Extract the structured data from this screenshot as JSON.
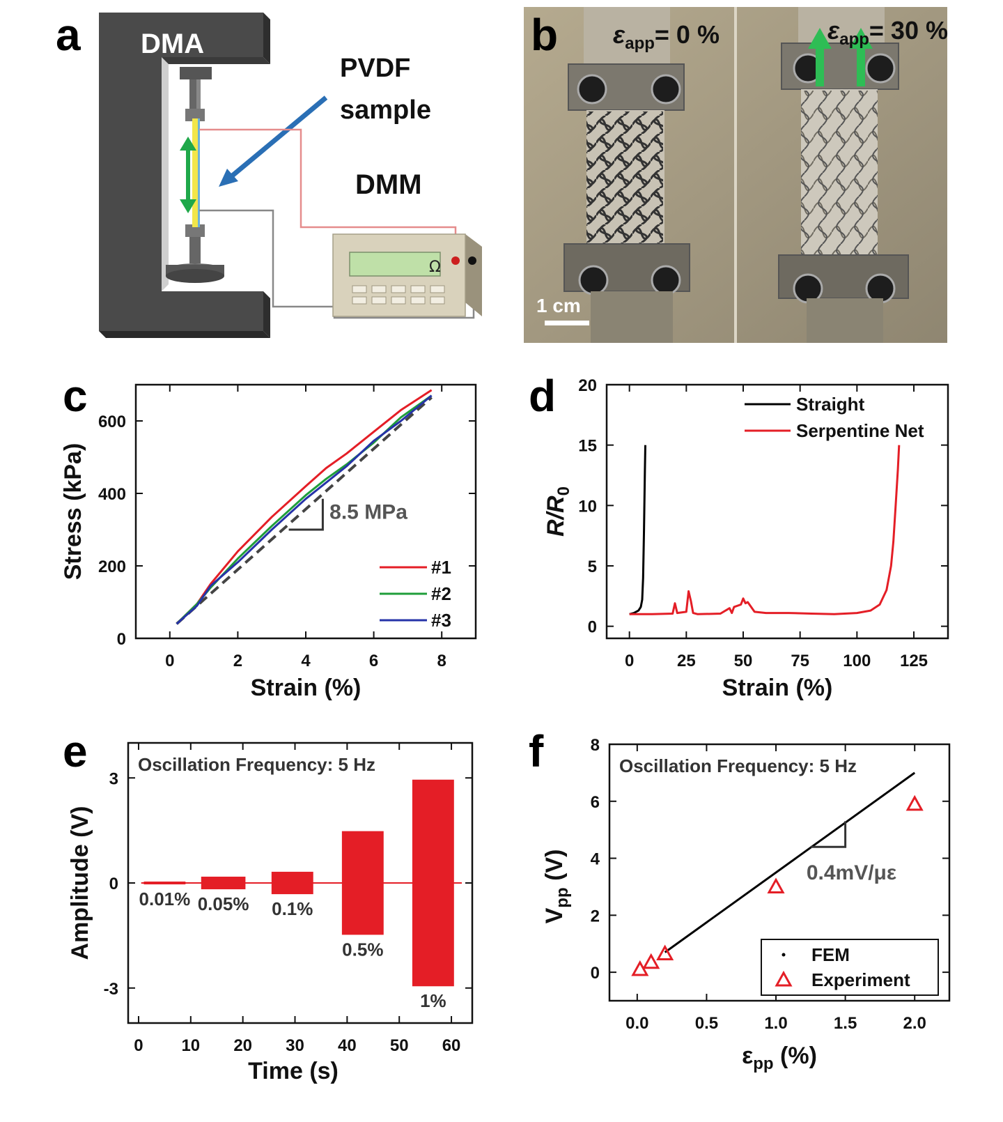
{
  "panels": {
    "a": {
      "letter": "a",
      "dma_label": "DMA",
      "sample_label_line1": "PVDF",
      "sample_label_line2": "sample",
      "dmm_label": "DMM",
      "ohm_symbol": "Ω"
    },
    "b": {
      "letter": "b",
      "left_label_main": "ε",
      "left_label_sub": "app",
      "left_label_value": "= 0 %",
      "right_label_main": "ε",
      "right_label_sub": "app",
      "right_label_value": "= 30 %",
      "scale_bar": "1 cm"
    }
  },
  "chart_data": [
    {
      "id": "c",
      "letter": "c",
      "type": "line",
      "xlabel": "Strain (%)",
      "ylabel": "Stress (kPa)",
      "xlim": [
        -1,
        9
      ],
      "ylim": [
        0,
        700
      ],
      "xticks": [
        0,
        2,
        4,
        6,
        8
      ],
      "yticks": [
        0,
        200,
        400,
        600
      ],
      "annotation": "8.5 MPa",
      "legend_position": "bottom-right",
      "series": [
        {
          "name": "#1",
          "color": "#e41e26",
          "x": [
            0.2,
            0.8,
            1.2,
            2,
            3,
            4,
            4.6,
            5.2,
            6,
            6.8,
            7.7
          ],
          "y": [
            40,
            95,
            150,
            240,
            335,
            420,
            470,
            510,
            570,
            630,
            685
          ]
        },
        {
          "name": "#2",
          "color": "#1f9e3a",
          "x": [
            0.2,
            0.8,
            1.2,
            2,
            3,
            4,
            4.6,
            5.2,
            6,
            6.8,
            7.7
          ],
          "y": [
            40,
            95,
            140,
            220,
            310,
            395,
            440,
            480,
            540,
            610,
            670
          ]
        },
        {
          "name": "#3",
          "color": "#2633a8",
          "x": [
            0.2,
            0.8,
            1.2,
            2,
            3,
            4,
            4.6,
            5.2,
            6,
            6.8,
            7.7
          ],
          "y": [
            40,
            90,
            145,
            210,
            300,
            385,
            430,
            475,
            545,
            600,
            670
          ]
        }
      ],
      "fit": {
        "x": [
          0.2,
          7.7
        ],
        "y": [
          40,
          665
        ],
        "color": "#444444"
      }
    },
    {
      "id": "d",
      "letter": "d",
      "type": "line",
      "xlabel": "Strain (%)",
      "ylabel_main": "R/R",
      "ylabel_sub": "0",
      "xlim": [
        -10,
        140
      ],
      "ylim": [
        -1,
        20
      ],
      "xticks": [
        0,
        25,
        50,
        75,
        100,
        125
      ],
      "yticks": [
        0,
        5,
        10,
        15,
        20
      ],
      "legend_position": "top-right",
      "series": [
        {
          "name": "Straight",
          "color": "#000000",
          "x": [
            0,
            2,
            4,
            5,
            5.6,
            6,
            6.4,
            6.8,
            7
          ],
          "y": [
            1,
            1.1,
            1.3,
            1.6,
            2.2,
            4,
            8,
            13,
            15
          ]
        },
        {
          "name": "Serpentine Net",
          "color": "#e41e26",
          "x": [
            0,
            10,
            19,
            20,
            21,
            25,
            26,
            27,
            28,
            30,
            40,
            44,
            45,
            46,
            49,
            50,
            51,
            52,
            55,
            60,
            70,
            80,
            90,
            100,
            106,
            110,
            113,
            115,
            116,
            117,
            118,
            118.5
          ],
          "y": [
            1,
            1,
            1.05,
            1.9,
            1.1,
            1.2,
            2.9,
            2.1,
            1.1,
            1,
            1.05,
            1.5,
            1.1,
            1.6,
            1.8,
            2.3,
            1.9,
            2.0,
            1.2,
            1.1,
            1.1,
            1.05,
            1.0,
            1.1,
            1.3,
            1.8,
            3.0,
            5,
            7,
            10,
            13,
            15
          ]
        }
      ]
    },
    {
      "id": "e",
      "letter": "e",
      "type": "bar",
      "xlabel": "Time (s)",
      "ylabel": "Amplitude (V)",
      "xlim": [
        -2,
        64
      ],
      "ylim": [
        -4,
        4
      ],
      "xticks": [
        0,
        10,
        20,
        30,
        40,
        50,
        60
      ],
      "yticks": [
        -3,
        0,
        3
      ],
      "ytick_labels": [
        "-3",
        "0",
        "3"
      ],
      "annotation": "Oscillation Frequency: 5 Hz",
      "color": "#e41e26",
      "blocks": [
        {
          "start": 1,
          "end": 9,
          "amp": 0.04,
          "label": "0.01%"
        },
        {
          "start": 12,
          "end": 20.5,
          "amp": 0.18,
          "label": "0.05%"
        },
        {
          "start": 25.5,
          "end": 33.5,
          "amp": 0.32,
          "label": "0.1%"
        },
        {
          "start": 39,
          "end": 47,
          "amp": 1.48,
          "label": "0.5%"
        },
        {
          "start": 52.5,
          "end": 60.5,
          "amp": 2.95,
          "label": "1%"
        }
      ]
    },
    {
      "id": "f",
      "letter": "f",
      "type": "scatter",
      "xlabel_main": "ε",
      "xlabel_sub": "pp",
      "xlabel_unit": "(%)",
      "ylabel_main": "V",
      "ylabel_sub": "pp",
      "ylabel_unit": "(V)",
      "xlim": [
        -0.2,
        2.25
      ],
      "ylim": [
        -1,
        8
      ],
      "xticks": [
        0.0,
        0.5,
        1.0,
        1.5,
        2.0
      ],
      "xtick_labels": [
        "0.0",
        "0.5",
        "1.0",
        "1.5",
        "2.0"
      ],
      "yticks": [
        0,
        2,
        4,
        6,
        8
      ],
      "annotation": "Oscillation Frequency: 5 Hz",
      "slope_label": "0.4mV/με",
      "legend_position": "bottom-right",
      "fem": {
        "name": "FEM",
        "color": "#000000",
        "x": [
          0.2,
          2.0
        ],
        "y": [
          0.7,
          7.0
        ]
      },
      "experiment": {
        "name": "Experiment",
        "color": "#e41e26",
        "x": [
          0.02,
          0.1,
          0.2,
          1.0,
          2.0
        ],
        "y": [
          0.1,
          0.35,
          0.65,
          3.0,
          5.9
        ]
      }
    }
  ]
}
